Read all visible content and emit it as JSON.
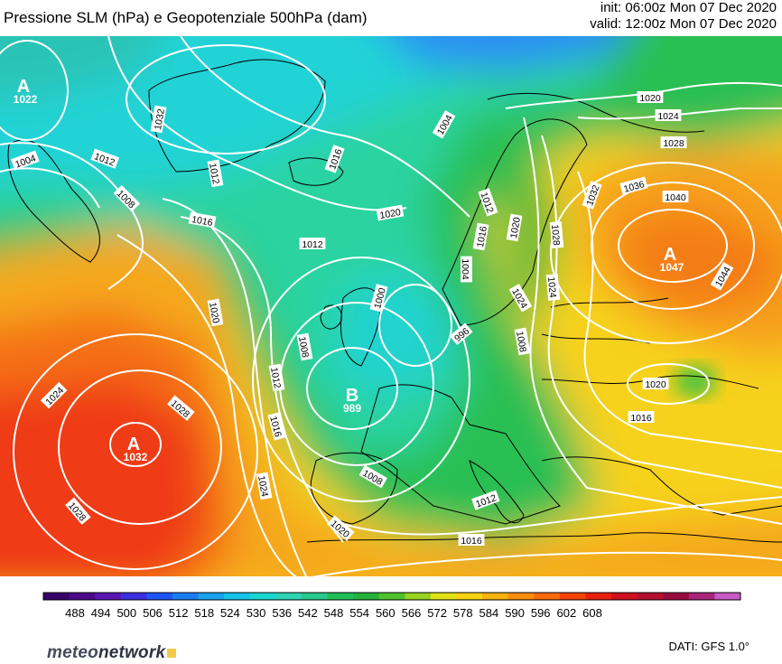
{
  "header": {
    "title": "Pressione SLM (hPa) e Geopotenziale 500hPa (dam)",
    "init": "init: 06:00z Mon 07 Dec 2020",
    "valid": "valid: 12:00z Mon 07 Dec 2020"
  },
  "centers": [
    {
      "label": "A",
      "value": "1022"
    },
    {
      "label": "A",
      "value": "1032"
    },
    {
      "label": "B",
      "value": "989"
    },
    {
      "label": "A",
      "value": "1047"
    }
  ],
  "isobar_labels": [
    "1004",
    "1012",
    "1008",
    "1016",
    "1012",
    "1020",
    "1016",
    "1012",
    "1008",
    "1000",
    "1004",
    "996",
    "1004",
    "1012",
    "1016",
    "1020",
    "1024",
    "1020",
    "1028",
    "1024",
    "1032",
    "1036",
    "1040",
    "1028",
    "1024",
    "1044",
    "1032",
    "1008",
    "1020",
    "1016",
    "1012",
    "1008",
    "1016",
    "1012",
    "1020",
    "1024",
    "1028",
    "1024",
    "1028",
    "1020",
    "1016"
  ],
  "legend": {
    "ticks": [
      "488",
      "494",
      "500",
      "506",
      "512",
      "518",
      "524",
      "530",
      "536",
      "542",
      "548",
      "554",
      "560",
      "566",
      "572",
      "578",
      "584",
      "590",
      "596",
      "602",
      "608"
    ],
    "colors": [
      "#3a006a",
      "#4b0a8a",
      "#5a16b4",
      "#3a2fe0",
      "#1f55f5",
      "#1a7ef2",
      "#19a3ee",
      "#16c4e8",
      "#19d6d2",
      "#2bd4b2",
      "#27c98c",
      "#1fbf5a",
      "#26b23a",
      "#4ec22d",
      "#97d31f",
      "#e2e315",
      "#f7d40f",
      "#f9b20e",
      "#f98d0c",
      "#f86a0a",
      "#f44409",
      "#ea1f0e",
      "#d1101f",
      "#b60f2d",
      "#9b0c3e",
      "#a9247a",
      "#c85ac4"
    ]
  },
  "footer": {
    "logo_a": "meteo",
    "logo_b": "network",
    "source": "DATI: GFS 1.0°"
  }
}
